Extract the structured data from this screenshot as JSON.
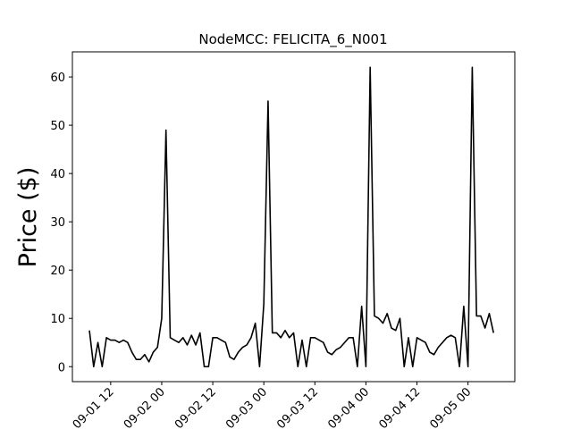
{
  "chart_data": {
    "type": "line",
    "title": "NodeMCC: FELICITA_6_N001",
    "y_label": "Price ($)",
    "x": [
      "09-01 07",
      "09-01 08",
      "09-01 09",
      "09-01 10",
      "09-01 11",
      "09-01 12",
      "09-01 13",
      "09-01 14",
      "09-01 15",
      "09-01 16",
      "09-01 17",
      "09-01 18",
      "09-01 19",
      "09-01 20",
      "09-01 21",
      "09-01 22",
      "09-01 23",
      "09-02 00",
      "09-02 01",
      "09-02 02",
      "09-02 03",
      "09-02 04",
      "09-02 05",
      "09-02 06",
      "09-02 07",
      "09-02 08",
      "09-02 09",
      "09-02 10",
      "09-02 11",
      "09-02 12",
      "09-02 13",
      "09-02 14",
      "09-02 15",
      "09-02 16",
      "09-02 17",
      "09-02 18",
      "09-02 19",
      "09-02 20",
      "09-02 21",
      "09-02 22",
      "09-02 23",
      "09-03 00",
      "09-03 01",
      "09-03 02",
      "09-03 03",
      "09-03 04",
      "09-03 05",
      "09-03 06",
      "09-03 07",
      "09-03 08",
      "09-03 09",
      "09-03 10",
      "09-03 11",
      "09-03 12",
      "09-03 13",
      "09-03 14",
      "09-03 15",
      "09-03 16",
      "09-03 17",
      "09-03 18",
      "09-03 19",
      "09-03 20",
      "09-03 21",
      "09-03 22",
      "09-03 23",
      "09-04 00",
      "09-04 01",
      "09-04 02",
      "09-04 03",
      "09-04 04",
      "09-04 05",
      "09-04 06",
      "09-04 07",
      "09-04 08",
      "09-04 09",
      "09-04 10",
      "09-04 11",
      "09-04 12",
      "09-04 13",
      "09-04 14",
      "09-04 15",
      "09-04 16",
      "09-04 17",
      "09-04 18",
      "09-04 19",
      "09-04 20",
      "09-04 21",
      "09-04 22",
      "09-04 23",
      "09-05 00",
      "09-05 01",
      "09-05 02",
      "09-05 03",
      "09-05 04",
      "09-05 05",
      "09-05 06"
    ],
    "series": [
      {
        "color": "#000000",
        "values": [
          7.5,
          0,
          5,
          0,
          6,
          5.5,
          5.5,
          5,
          5.5,
          5,
          3,
          1.5,
          1.5,
          2.5,
          1,
          3,
          4,
          10,
          49,
          6,
          5.5,
          5,
          6,
          4.5,
          6.5,
          4.5,
          7,
          0,
          0,
          6,
          6,
          5.5,
          5,
          2,
          1.5,
          3,
          4,
          4.5,
          6,
          9,
          0,
          13,
          55,
          7,
          7,
          6,
          7.5,
          6,
          7,
          0,
          5.5,
          0,
          6,
          6,
          5.5,
          5,
          3,
          2.5,
          3.5,
          4,
          5,
          6,
          6,
          0,
          12.5,
          0,
          62,
          10.5,
          10,
          9,
          11,
          8,
          7.5,
          10,
          0,
          6,
          0,
          6,
          5.5,
          5,
          3,
          2.5,
          4,
          5,
          6,
          6.5,
          6,
          0,
          12.5,
          0,
          62,
          10.5,
          10.5,
          8,
          11,
          7
        ]
      }
    ],
    "xlim": [
      "09-01 03",
      "09-05 11"
    ],
    "xticks": [
      "09-01 12",
      "09-02 00",
      "09-02 12",
      "09-03 00",
      "09-03 12",
      "09-04 00",
      "09-04 12",
      "09-05 00"
    ],
    "ylim": [
      -3.1,
      65.2
    ],
    "yticks": [
      0,
      10,
      20,
      30,
      40,
      50,
      60
    ]
  }
}
